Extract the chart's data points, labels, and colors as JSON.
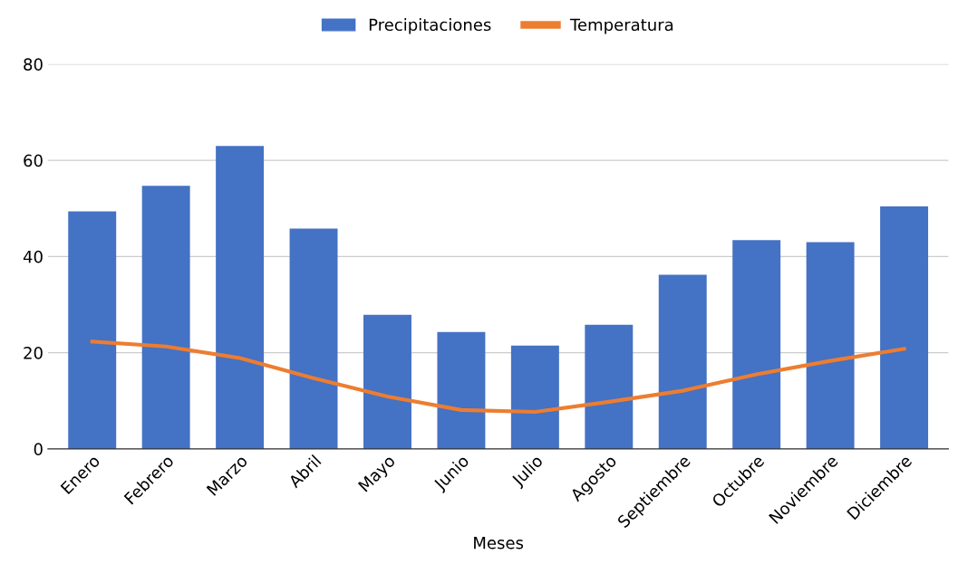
{
  "chart_data": {
    "type": "bar",
    "xlabel": "Meses",
    "categories": [
      "Enero",
      "Febrero",
      "Marzo",
      "Abril",
      "Mayo",
      "Junio",
      "Julio",
      "Agosto",
      "Septiembre",
      "Octubre",
      "Noviembre",
      "Diciembre"
    ],
    "series": [
      {
        "name": "Precipitaciones",
        "color": "#4472c4",
        "values": [
          49.4,
          54.7,
          63,
          45.8,
          27.9,
          24.3,
          21.5,
          25.8,
          36.2,
          43.4,
          43.0,
          50.4
        ]
      },
      {
        "name": "Temperatura",
        "type": "line",
        "color": "#ed7d31",
        "values": [
          22.3,
          21.3,
          18.9,
          14.7,
          10.9,
          8.1,
          7.7,
          9.8,
          12.1,
          15.5,
          18.3,
          20.8
        ]
      }
    ],
    "ylim": [
      0,
      80
    ],
    "yticks": [
      0,
      20,
      40,
      60,
      80
    ],
    "grid": "y",
    "legend": "top",
    "marker": "none",
    "line_style": "solid"
  }
}
